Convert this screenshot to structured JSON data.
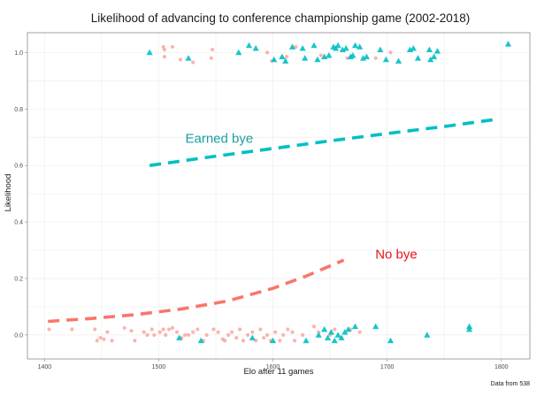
{
  "chart_data": {
    "type": "scatter",
    "title": "Likelihood of advancing to conference championship game (2002-2018)",
    "xlabel": "Elo after 11 games",
    "ylabel": "Likelihood",
    "caption": "Data from 538",
    "xlim": [
      1385,
      1825
    ],
    "ylim": [
      -0.085,
      1.07
    ],
    "xticks": [
      1400,
      1500,
      1600,
      1700,
      1800
    ],
    "yticks": [
      0.0,
      0.2,
      0.4,
      0.6,
      0.8,
      1.0
    ],
    "xtick_labels": [
      "1400",
      "1500",
      "1600",
      "1700",
      "1800"
    ],
    "ytick_labels": [
      "0.0",
      "0.2",
      "0.4",
      "0.6",
      "0.8",
      "1.0"
    ],
    "grid": true,
    "series": [
      {
        "name": "No bye",
        "marker": "circle",
        "color": "#f8766d",
        "points": [
          [
            1404,
            0.02
          ],
          [
            1424,
            0.02
          ],
          [
            1444,
            0.02
          ],
          [
            1446,
            -0.02
          ],
          [
            1449,
            -0.01
          ],
          [
            1452,
            -0.015
          ],
          [
            1455,
            0.01
          ],
          [
            1459,
            -0.02
          ],
          [
            1470,
            0.025
          ],
          [
            1476,
            0.015
          ],
          [
            1479,
            -0.02
          ],
          [
            1487,
            0.01
          ],
          [
            1490,
            0.0
          ],
          [
            1494,
            0.02
          ],
          [
            1496,
            0.0
          ],
          [
            1501,
            0.01
          ],
          [
            1504,
            0.02
          ],
          [
            1506,
            0.0
          ],
          [
            1509,
            0.02
          ],
          [
            1512,
            0.025
          ],
          [
            1516,
            0.01
          ],
          [
            1520,
            -0.01
          ],
          [
            1523,
            0.0
          ],
          [
            1526,
            0.0
          ],
          [
            1530,
            0.01
          ],
          [
            1534,
            0.02
          ],
          [
            1539,
            -0.02
          ],
          [
            1542,
            0.0
          ],
          [
            1548,
            0.02
          ],
          [
            1552,
            0.01
          ],
          [
            1556,
            -0.015
          ],
          [
            1558,
            -0.02
          ],
          [
            1561,
            0.0
          ],
          [
            1564,
            0.01
          ],
          [
            1568,
            -0.01
          ],
          [
            1571,
            0.02
          ],
          [
            1574,
            -0.02
          ],
          [
            1578,
            0.0
          ],
          [
            1582,
            0.01
          ],
          [
            1585,
            -0.02
          ],
          [
            1589,
            0.02
          ],
          [
            1592,
            -0.01
          ],
          [
            1595,
            0.0
          ],
          [
            1598,
            -0.02
          ],
          [
            1602,
            0.01
          ],
          [
            1606,
            -0.02
          ],
          [
            1609,
            0.0
          ],
          [
            1613,
            0.02
          ],
          [
            1617,
            0.01
          ],
          [
            1619,
            -0.02
          ],
          [
            1626,
            0.0
          ],
          [
            1636,
            0.03
          ],
          [
            1640,
            0.01
          ],
          [
            1650,
            0.0
          ],
          [
            1654,
            0.02
          ],
          [
            1660,
            -0.01
          ],
          [
            1668,
            0.02
          ],
          [
            1676,
            0.01
          ],
          [
            1504,
            1.02
          ],
          [
            1505,
            1.01
          ],
          [
            1512,
            1.02
          ],
          [
            1505,
            0.985
          ],
          [
            1519,
            0.975
          ],
          [
            1530,
            0.965
          ],
          [
            1546,
            0.98
          ],
          [
            1547,
            1.01
          ],
          [
            1595,
            1.0
          ],
          [
            1599,
            0.97
          ],
          [
            1612,
            0.985
          ],
          [
            1620,
            1.02
          ],
          [
            1642,
            0.99
          ],
          [
            1665,
            0.98
          ],
          [
            1690,
            0.98
          ],
          [
            1703,
            1.0
          ]
        ]
      },
      {
        "name": "Earned bye",
        "marker": "triangle",
        "color": "#00bfc4",
        "points": [
          [
            1492,
            1.0
          ],
          [
            1526,
            0.98
          ],
          [
            1570,
            1.0
          ],
          [
            1579,
            1.025
          ],
          [
            1585,
            1.015
          ],
          [
            1601,
            0.975
          ],
          [
            1608,
            0.985
          ],
          [
            1611,
            0.97
          ],
          [
            1617,
            1.02
          ],
          [
            1626,
            1.015
          ],
          [
            1628,
            0.98
          ],
          [
            1636,
            1.025
          ],
          [
            1639,
            0.975
          ],
          [
            1645,
            0.985
          ],
          [
            1649,
            0.99
          ],
          [
            1653,
            1.02
          ],
          [
            1655,
            1.015
          ],
          [
            1657,
            1.025
          ],
          [
            1661,
            1.01
          ],
          [
            1664,
            1.015
          ],
          [
            1668,
            0.985
          ],
          [
            1670,
            0.99
          ],
          [
            1672,
            1.025
          ],
          [
            1676,
            1.02
          ],
          [
            1679,
            0.98
          ],
          [
            1682,
            0.985
          ],
          [
            1694,
            1.01
          ],
          [
            1699,
            0.975
          ],
          [
            1710,
            0.97
          ],
          [
            1720,
            1.01
          ],
          [
            1723,
            1.015
          ],
          [
            1727,
            0.98
          ],
          [
            1737,
            1.01
          ],
          [
            1744,
            1.005
          ],
          [
            1738,
            0.975
          ],
          [
            1741,
            0.985
          ],
          [
            1806,
            1.03
          ],
          [
            1518,
            -0.01
          ],
          [
            1537,
            -0.02
          ],
          [
            1582,
            -0.01
          ],
          [
            1600,
            -0.02
          ],
          [
            1629,
            -0.02
          ],
          [
            1640,
            0.0
          ],
          [
            1645,
            0.02
          ],
          [
            1648,
            -0.01
          ],
          [
            1651,
            0.01
          ],
          [
            1654,
            -0.02
          ],
          [
            1657,
            0.0
          ],
          [
            1660,
            -0.01
          ],
          [
            1663,
            0.01
          ],
          [
            1666,
            0.02
          ],
          [
            1672,
            0.03
          ],
          [
            1690,
            0.03
          ],
          [
            1703,
            -0.02
          ],
          [
            1735,
            0.0
          ],
          [
            1772,
            0.03
          ],
          [
            1772,
            0.02
          ]
        ]
      }
    ],
    "fitted_lines": [
      {
        "name": "Earned bye",
        "label": "Earned bye",
        "color": "#00bfc4",
        "label_color": "#1a9f9f",
        "style": "dashed",
        "x": [
          1492,
          1550,
          1600,
          1650,
          1700,
          1750,
          1795
        ],
        "y": [
          0.6,
          0.633,
          0.66,
          0.687,
          0.713,
          0.738,
          0.763
        ],
        "label_at": [
          1553,
          0.68
        ]
      },
      {
        "name": "No bye",
        "label": "No bye",
        "color": "#f8766d",
        "label_color": "#e8141a",
        "style": "dashed",
        "x": [
          1403,
          1440,
          1480,
          1520,
          1560,
          1600,
          1630,
          1662
        ],
        "y": [
          0.048,
          0.058,
          0.072,
          0.092,
          0.12,
          0.165,
          0.21,
          0.265
        ],
        "label_at": [
          1708,
          0.27
        ]
      }
    ]
  }
}
